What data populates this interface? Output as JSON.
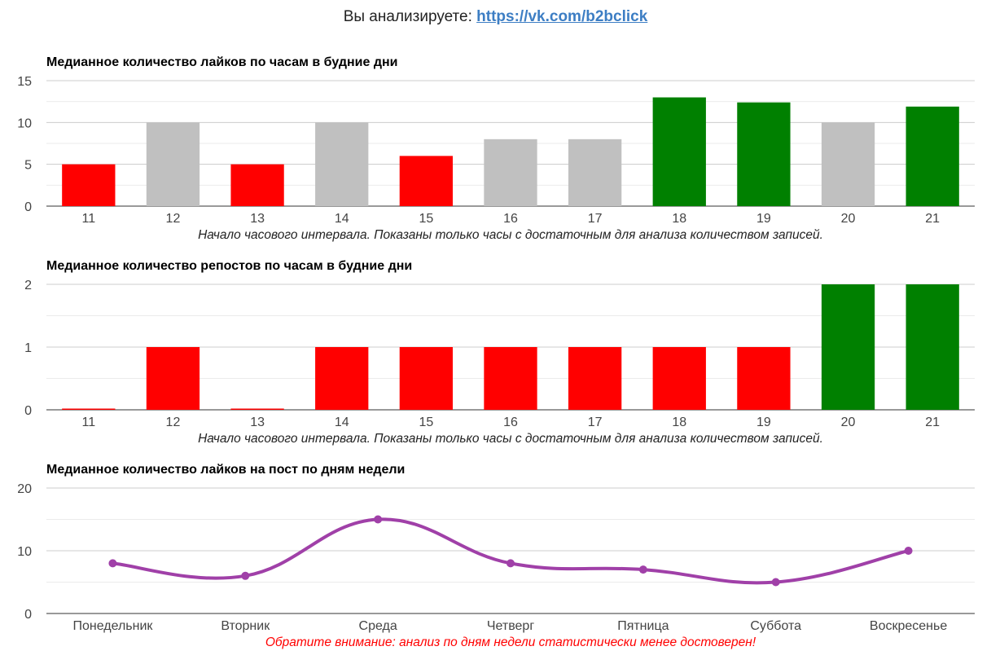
{
  "header": {
    "prefix": "Вы анализируете: ",
    "link_text": "https://vk.com/b2bclick"
  },
  "colors": {
    "red": "#ff0000",
    "gray": "#c0c0c0",
    "green": "#008000",
    "purple": "#a040a8",
    "gridline": "#cccccc",
    "minor_gridline": "#ebebeb",
    "axis": "#333333"
  },
  "chart_data": [
    {
      "type": "bar",
      "title": "Медианное количество лайков по часам в будние дни",
      "categories": [
        "11",
        "12",
        "13",
        "14",
        "15",
        "16",
        "17",
        "18",
        "19",
        "20",
        "21"
      ],
      "values": [
        5,
        10,
        5,
        10,
        6,
        8,
        8,
        13,
        12.4,
        10,
        11.9
      ],
      "bar_colors": [
        "red",
        "gray",
        "red",
        "gray",
        "red",
        "gray",
        "gray",
        "green",
        "green",
        "gray",
        "green"
      ],
      "ylim": [
        0,
        15
      ],
      "yticks": [
        0,
        5,
        10,
        15
      ],
      "minor_step": 2.5,
      "note": "Начало часового интервала. Показаны только часы с достаточным для анализа количеством записей."
    },
    {
      "type": "bar",
      "title": "Медианное количество репостов по часам в будние дни",
      "categories": [
        "11",
        "12",
        "13",
        "14",
        "15",
        "16",
        "17",
        "18",
        "19",
        "20",
        "21"
      ],
      "values": [
        0,
        1,
        0,
        1,
        1,
        1,
        1,
        1,
        1,
        2,
        2
      ],
      "bar_colors": [
        "red",
        "red",
        "red",
        "red",
        "red",
        "red",
        "red",
        "red",
        "red",
        "green",
        "green"
      ],
      "ylim": [
        0,
        2
      ],
      "yticks": [
        0,
        1,
        2
      ],
      "minor_step": 0.5,
      "note": "Начало часового интервала. Показаны только часы с достаточным для анализа количеством записей."
    },
    {
      "type": "line",
      "title": "Медианное количество лайков на пост по дням недели",
      "categories": [
        "Понедельник",
        "Вторник",
        "Среда",
        "Четверг",
        "Пятница",
        "Суббота",
        "Воскресенье"
      ],
      "values": [
        8,
        6,
        15,
        8,
        7,
        5,
        10
      ],
      "line_color": "purple",
      "ylim": [
        0,
        20
      ],
      "yticks": [
        0,
        10,
        20
      ],
      "minor_step": 5,
      "note": "Обратите внимание: анализ по дням недели статистически менее достоверен!"
    }
  ]
}
